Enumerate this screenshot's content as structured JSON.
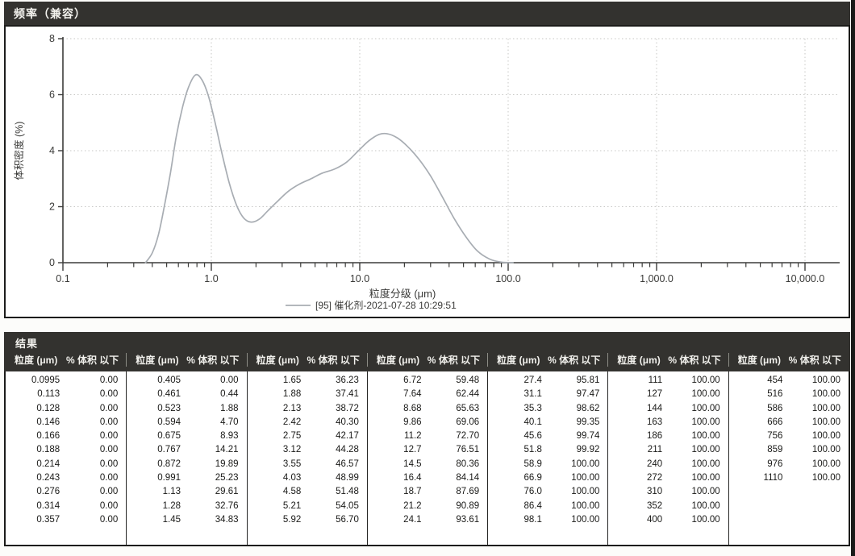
{
  "chart_panel": {
    "title": "频率（兼容）"
  },
  "chart_data": {
    "type": "line",
    "title": "频率（兼容）",
    "xlabel": "粒度分级 (μm)",
    "ylabel": "体积密度 (%)",
    "x_scale": "log",
    "xlim": [
      0.1,
      10000
    ],
    "ylim": [
      0,
      8
    ],
    "grid": true,
    "legend_position": "bottom",
    "y_ticks": [
      0,
      2,
      4,
      6,
      8
    ],
    "x_ticks": [
      {
        "value": 0.1,
        "label": "0.1"
      },
      {
        "value": 1,
        "label": "1.0"
      },
      {
        "value": 10,
        "label": "10.0"
      },
      {
        "value": 100,
        "label": "100.0"
      },
      {
        "value": 1000,
        "label": "1,000.0"
      },
      {
        "value": 10000,
        "label": "10,000.0"
      }
    ],
    "series": [
      {
        "name": "[95] 催化剂-2021-07-28 10:29:51",
        "color": "#a8adb3",
        "points": [
          [
            0.36,
            0
          ],
          [
            0.4,
            0.35
          ],
          [
            0.44,
            1.0
          ],
          [
            0.48,
            1.95
          ],
          [
            0.53,
            3.2
          ],
          [
            0.58,
            4.5
          ],
          [
            0.64,
            5.55
          ],
          [
            0.7,
            6.25
          ],
          [
            0.78,
            6.7
          ],
          [
            0.86,
            6.55
          ],
          [
            0.95,
            6.0
          ],
          [
            1.05,
            5.1
          ],
          [
            1.18,
            3.9
          ],
          [
            1.32,
            2.85
          ],
          [
            1.48,
            2.05
          ],
          [
            1.65,
            1.6
          ],
          [
            1.85,
            1.45
          ],
          [
            2.1,
            1.55
          ],
          [
            2.4,
            1.85
          ],
          [
            2.8,
            2.2
          ],
          [
            3.3,
            2.55
          ],
          [
            3.9,
            2.8
          ],
          [
            4.7,
            3.0
          ],
          [
            5.6,
            3.2
          ],
          [
            6.8,
            3.35
          ],
          [
            8.2,
            3.6
          ],
          [
            9.8,
            4.0
          ],
          [
            11.5,
            4.35
          ],
          [
            13.5,
            4.58
          ],
          [
            15.5,
            4.6
          ],
          [
            18,
            4.45
          ],
          [
            21,
            4.15
          ],
          [
            25,
            3.7
          ],
          [
            30,
            3.1
          ],
          [
            36,
            2.35
          ],
          [
            43,
            1.6
          ],
          [
            52,
            0.92
          ],
          [
            62,
            0.42
          ],
          [
            75,
            0.13
          ],
          [
            90,
            0.02
          ],
          [
            108,
            0
          ]
        ]
      }
    ]
  },
  "table": {
    "title": "结果",
    "column_headers": {
      "size": "粒度 (μm)",
      "percent": "% 体积 以下"
    },
    "groups": [
      {
        "rows": [
          [
            "0.0995",
            "0.00"
          ],
          [
            "0.113",
            "0.00"
          ],
          [
            "0.128",
            "0.00"
          ],
          [
            "0.146",
            "0.00"
          ],
          [
            "0.166",
            "0.00"
          ],
          [
            "0.188",
            "0.00"
          ],
          [
            "0.214",
            "0.00"
          ],
          [
            "0.243",
            "0.00"
          ],
          [
            "0.276",
            "0.00"
          ],
          [
            "0.314",
            "0.00"
          ],
          [
            "0.357",
            "0.00"
          ]
        ]
      },
      {
        "rows": [
          [
            "0.405",
            "0.00"
          ],
          [
            "0.461",
            "0.44"
          ],
          [
            "0.523",
            "1.88"
          ],
          [
            "0.594",
            "4.70"
          ],
          [
            "0.675",
            "8.93"
          ],
          [
            "0.767",
            "14.21"
          ],
          [
            "0.872",
            "19.89"
          ],
          [
            "0.991",
            "25.23"
          ],
          [
            "1.13",
            "29.61"
          ],
          [
            "1.28",
            "32.76"
          ],
          [
            "1.45",
            "34.83"
          ]
        ]
      },
      {
        "rows": [
          [
            "1.65",
            "36.23"
          ],
          [
            "1.88",
            "37.41"
          ],
          [
            "2.13",
            "38.72"
          ],
          [
            "2.42",
            "40.30"
          ],
          [
            "2.75",
            "42.17"
          ],
          [
            "3.12",
            "44.28"
          ],
          [
            "3.55",
            "46.57"
          ],
          [
            "4.03",
            "48.99"
          ],
          [
            "4.58",
            "51.48"
          ],
          [
            "5.21",
            "54.05"
          ],
          [
            "5.92",
            "56.70"
          ]
        ]
      },
      {
        "rows": [
          [
            "6.72",
            "59.48"
          ],
          [
            "7.64",
            "62.44"
          ],
          [
            "8.68",
            "65.63"
          ],
          [
            "9.86",
            "69.06"
          ],
          [
            "11.2",
            "72.70"
          ],
          [
            "12.7",
            "76.51"
          ],
          [
            "14.5",
            "80.36"
          ],
          [
            "16.4",
            "84.14"
          ],
          [
            "18.7",
            "87.69"
          ],
          [
            "21.2",
            "90.89"
          ],
          [
            "24.1",
            "93.61"
          ]
        ]
      },
      {
        "rows": [
          [
            "27.4",
            "95.81"
          ],
          [
            "31.1",
            "97.47"
          ],
          [
            "35.3",
            "98.62"
          ],
          [
            "40.1",
            "99.35"
          ],
          [
            "45.6",
            "99.74"
          ],
          [
            "51.8",
            "99.92"
          ],
          [
            "58.9",
            "100.00"
          ],
          [
            "66.9",
            "100.00"
          ],
          [
            "76.0",
            "100.00"
          ],
          [
            "86.4",
            "100.00"
          ],
          [
            "98.1",
            "100.00"
          ]
        ]
      },
      {
        "rows": [
          [
            "111",
            "100.00"
          ],
          [
            "127",
            "100.00"
          ],
          [
            "144",
            "100.00"
          ],
          [
            "163",
            "100.00"
          ],
          [
            "186",
            "100.00"
          ],
          [
            "211",
            "100.00"
          ],
          [
            "240",
            "100.00"
          ],
          [
            "272",
            "100.00"
          ],
          [
            "310",
            "100.00"
          ],
          [
            "352",
            "100.00"
          ],
          [
            "400",
            "100.00"
          ]
        ]
      },
      {
        "rows": [
          [
            "454",
            "100.00"
          ],
          [
            "516",
            "100.00"
          ],
          [
            "586",
            "100.00"
          ],
          [
            "666",
            "100.00"
          ],
          [
            "756",
            "100.00"
          ],
          [
            "859",
            "100.00"
          ],
          [
            "976",
            "100.00"
          ],
          [
            "1110",
            "100.00"
          ]
        ]
      }
    ]
  }
}
